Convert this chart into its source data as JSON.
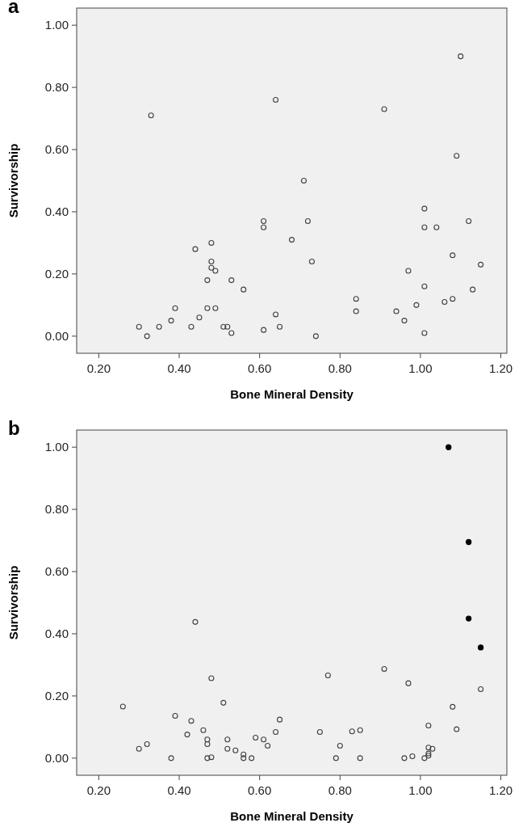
{
  "chart_data": [
    {
      "type": "scatter",
      "title": "a",
      "xlabel": "Bone Mineral Density",
      "ylabel": "Survivorship",
      "xlim": [
        0.145,
        1.215
      ],
      "ylim": [
        -0.055,
        1.055
      ],
      "xticks": [
        {
          "value": 0.2,
          "label": "0.20"
        },
        {
          "value": 0.4,
          "label": "0.40"
        },
        {
          "value": 0.6,
          "label": "0.60"
        },
        {
          "value": 0.8,
          "label": "0.80"
        },
        {
          "value": 1.0,
          "label": "1.00"
        },
        {
          "value": 1.2,
          "label": "1.20"
        }
      ],
      "yticks": [
        {
          "value": 0,
          "label": "0.00"
        },
        {
          "value": 0.2,
          "label": "0.20"
        },
        {
          "value": 0.4,
          "label": "0.40"
        },
        {
          "value": 0.6,
          "label": "0.60"
        },
        {
          "value": 0.8,
          "label": "0.80"
        },
        {
          "value": 1.0,
          "label": "1.00"
        }
      ],
      "grid": false,
      "marker": "circle",
      "series": [
        {
          "color": "#404040",
          "x": [
            0.3,
            0.32,
            0.33,
            0.35,
            0.38,
            0.39,
            0.43,
            0.44,
            0.45,
            0.47,
            0.47,
            0.48,
            0.48,
            0.48,
            0.49,
            0.49,
            0.51,
            0.52,
            0.53,
            0.53,
            0.56,
            0.61,
            0.61,
            0.61,
            0.64,
            0.64,
            0.65,
            0.68,
            0.71,
            0.72,
            0.73,
            0.74,
            0.84,
            0.84,
            0.91,
            0.94,
            0.96,
            0.97,
            0.99,
            1.01,
            1.01,
            1.01,
            1.01,
            1.04,
            1.06,
            1.08,
            1.08,
            1.09,
            1.1,
            1.12,
            1.13,
            1.15
          ],
          "values": [
            0.03,
            0.0,
            0.71,
            0.03,
            0.05,
            0.09,
            0.03,
            0.28,
            0.06,
            0.18,
            0.09,
            0.3,
            0.24,
            0.22,
            0.21,
            0.09,
            0.03,
            0.03,
            0.18,
            0.01,
            0.15,
            0.37,
            0.35,
            0.02,
            0.76,
            0.07,
            0.03,
            0.31,
            0.5,
            0.37,
            0.24,
            0.0,
            0.12,
            0.08,
            0.73,
            0.08,
            0.05,
            0.21,
            0.1,
            0.41,
            0.35,
            0.16,
            0.01,
            0.35,
            0.11,
            0.26,
            0.12,
            0.58,
            0.9,
            0.37,
            0.15,
            0.23
          ]
        }
      ]
    },
    {
      "type": "scatter",
      "title": "b",
      "xlabel": "Bone Mineral Density",
      "ylabel": "Survivorship",
      "xlim": [
        0.145,
        1.215
      ],
      "ylim": [
        -0.055,
        1.055
      ],
      "xticks": [
        {
          "value": 0.2,
          "label": "0.20"
        },
        {
          "value": 0.4,
          "label": "0.40"
        },
        {
          "value": 0.6,
          "label": "0.60"
        },
        {
          "value": 0.8,
          "label": "0.80"
        },
        {
          "value": 1.0,
          "label": "1.00"
        },
        {
          "value": 1.2,
          "label": "1.20"
        }
      ],
      "yticks": [
        {
          "value": 0,
          "label": "0.00"
        },
        {
          "value": 0.2,
          "label": "0.20"
        },
        {
          "value": 0.4,
          "label": "0.40"
        },
        {
          "value": 0.6,
          "label": "0.60"
        },
        {
          "value": 0.8,
          "label": "0.80"
        },
        {
          "value": 1.0,
          "label": "1.00"
        }
      ],
      "grid": false,
      "marker": "circle",
      "series": [
        {
          "color": "#404040",
          "x": [
            0.26,
            0.3,
            0.32,
            0.38,
            0.39,
            0.42,
            0.43,
            0.44,
            0.46,
            0.47,
            0.47,
            0.47,
            0.48,
            0.48,
            0.51,
            0.52,
            0.52,
            0.54,
            0.56,
            0.56,
            0.58,
            0.59,
            0.61,
            0.62,
            0.64,
            0.65,
            0.75,
            0.77,
            0.8,
            0.79,
            0.83,
            0.85,
            0.85,
            0.91,
            0.96,
            0.98,
            0.97,
            1.01,
            1.02,
            1.02,
            1.03,
            1.02,
            1.02,
            1.08,
            1.09,
            1.15
          ],
          "values": [
            0.166,
            0.03,
            0.045,
            0.0,
            0.136,
            0.076,
            0.12,
            0.438,
            0.09,
            0.06,
            0.045,
            0.0,
            0.003,
            0.257,
            0.178,
            0.06,
            0.03,
            0.025,
            0.012,
            0.0,
            0.0,
            0.066,
            0.06,
            0.04,
            0.084,
            0.124,
            0.084,
            0.266,
            0.04,
            0.0,
            0.086,
            0.09,
            0.0,
            0.287,
            0.0,
            0.006,
            0.241,
            0.0,
            0.105,
            0.034,
            0.03,
            0.015,
            0.008,
            0.165,
            0.093,
            0.222
          ]
        },
        {
          "color": "#000000",
          "x": [
            1.07,
            1.12,
            1.12,
            1.15
          ],
          "values": [
            1.0,
            0.695,
            0.449,
            0.356
          ]
        }
      ]
    }
  ]
}
